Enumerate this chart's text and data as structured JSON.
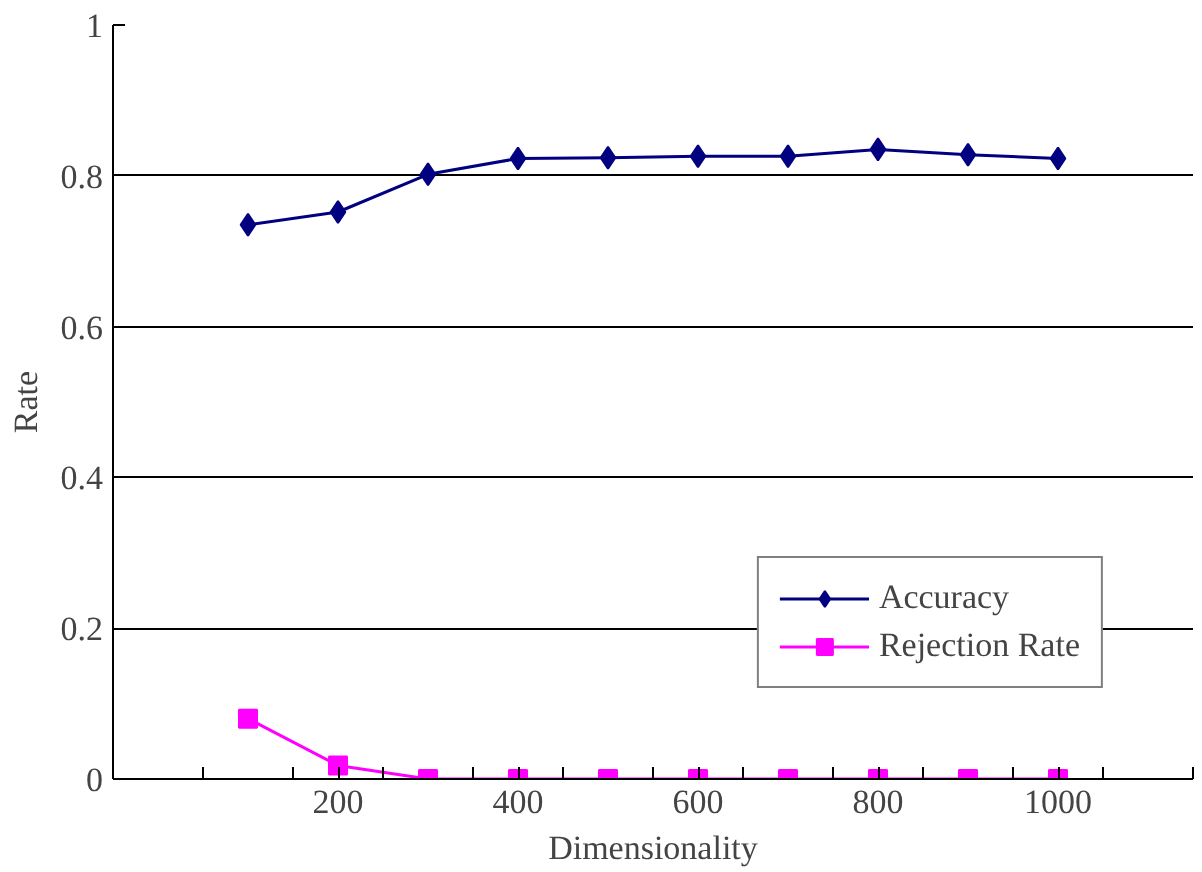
{
  "chart_data": {
    "type": "line",
    "xlabel": "Dimensionality",
    "ylabel": "Rate",
    "x": [
      100,
      200,
      300,
      400,
      500,
      600,
      700,
      800,
      900,
      1000
    ],
    "series": [
      {
        "name": "Accuracy",
        "color": "#000080",
        "marker": "diamond",
        "values": [
          0.735,
          0.752,
          0.802,
          0.823,
          0.824,
          0.826,
          0.826,
          0.835,
          0.828,
          0.823
        ]
      },
      {
        "name": "Rejection Rate",
        "color": "#ff00ff",
        "marker": "square",
        "values": [
          0.08,
          0.018,
          0,
          0,
          0,
          0,
          0,
          0,
          0,
          0
        ]
      }
    ],
    "xlim": [
      -50,
      1150
    ],
    "xticks": [
      {
        "value": 50,
        "label": null
      },
      {
        "value": 150,
        "label": null
      },
      200,
      {
        "value": 250,
        "label": null
      },
      {
        "value": 350,
        "label": null
      },
      400,
      {
        "value": 450,
        "label": null
      },
      {
        "value": 550,
        "label": null
      },
      600,
      {
        "value": 650,
        "label": null
      },
      {
        "value": 750,
        "label": null
      },
      800,
      {
        "value": 850,
        "label": null
      },
      {
        "value": 950,
        "label": null
      },
      1000,
      {
        "value": 1050,
        "label": null
      },
      {
        "value": 1150,
        "label": null
      }
    ],
    "ylim": [
      0,
      1
    ],
    "yticks": [
      0,
      0.2,
      0.4,
      0.6,
      0.8,
      1
    ],
    "grid": "y",
    "legend": "bottom right"
  }
}
